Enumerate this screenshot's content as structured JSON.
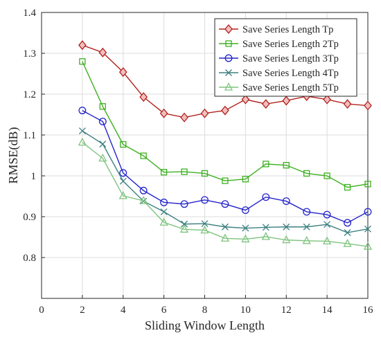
{
  "chart_data": {
    "type": "line",
    "xlabel": "Sliding Window Length",
    "ylabel": "RMSE(dB)",
    "xlim": [
      0,
      16
    ],
    "ylim": [
      0.7,
      1.4
    ],
    "xticks": [
      "0",
      "2",
      "4",
      "6",
      "8",
      "10",
      "12",
      "14",
      "16"
    ],
    "yticks": [
      "0.8",
      "0.9",
      "1",
      "1.1",
      "1.2",
      "1.3",
      "1.4"
    ],
    "grid": true,
    "legend_position": "top-right",
    "x": [
      2,
      3,
      4,
      5,
      6,
      7,
      8,
      9,
      10,
      11,
      12,
      13,
      14,
      15,
      16
    ],
    "series": [
      {
        "name": "Save Series Length Tp",
        "marker": "diamond",
        "color": "#b2201c",
        "fill": "#f2bebe",
        "values": [
          1.32,
          1.302,
          1.254,
          1.193,
          1.153,
          1.143,
          1.153,
          1.16,
          1.187,
          1.176,
          1.184,
          1.195,
          1.187,
          1.176,
          1.172
        ]
      },
      {
        "name": "Save Series Length 2Tp",
        "marker": "square",
        "color": "#3cb01e",
        "fill": "none",
        "values": [
          1.28,
          1.17,
          1.077,
          1.049,
          1.009,
          1.01,
          1.006,
          0.988,
          0.992,
          1.029,
          1.026,
          1.006,
          1.0,
          0.972,
          0.98
        ]
      },
      {
        "name": "Save Series Length 3Tp",
        "marker": "circle",
        "color": "#2222cc",
        "fill": "none",
        "values": [
          1.16,
          1.133,
          1.007,
          0.964,
          0.935,
          0.931,
          0.941,
          0.931,
          0.916,
          0.948,
          0.938,
          0.912,
          0.905,
          0.885,
          0.912
        ]
      },
      {
        "name": "Save Series Length 4Tp",
        "marker": "x",
        "color": "#3d8080",
        "fill": "none",
        "values": [
          1.11,
          1.078,
          0.987,
          0.938,
          0.912,
          0.882,
          0.883,
          0.875,
          0.872,
          0.874,
          0.875,
          0.875,
          0.881,
          0.861,
          0.87
        ]
      },
      {
        "name": "Save Series Length 5Tp",
        "marker": "triangle",
        "color": "#7dc47d",
        "fill": "none",
        "values": [
          1.082,
          1.043,
          0.951,
          0.939,
          0.886,
          0.869,
          0.867,
          0.847,
          0.845,
          0.851,
          0.843,
          0.841,
          0.84,
          0.834,
          0.827
        ]
      }
    ]
  }
}
